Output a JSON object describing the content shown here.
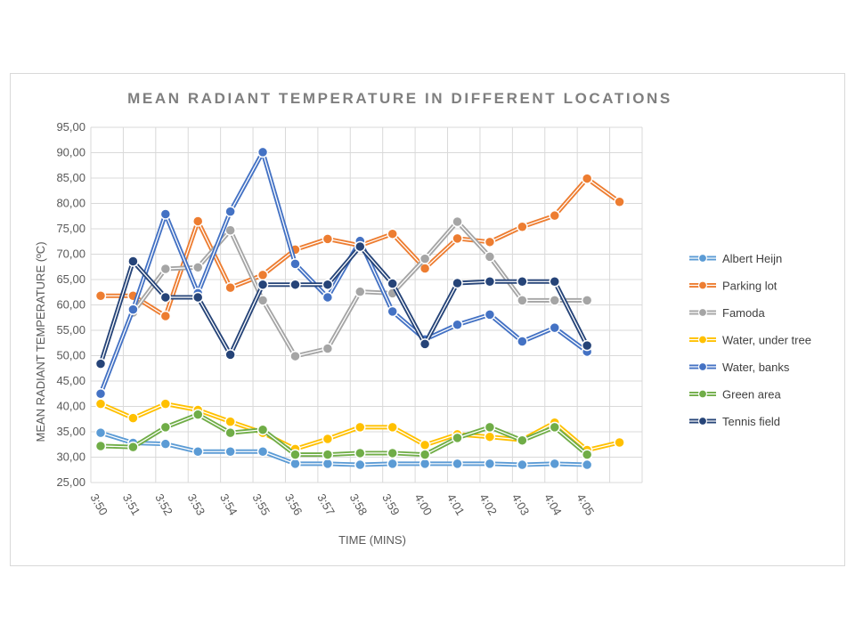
{
  "chart_data": {
    "type": "line",
    "title": "MEAN RADIANT TEMPERATURE IN DIFFERENT LOCATIONS",
    "xlabel": "TIME (MINS)",
    "ylabel": "MEAN RADIANT TEMPERATURE (ºC)",
    "ylim": [
      25,
      95
    ],
    "ytick_step": 5,
    "ytick_labels": [
      "25,00",
      "30,00",
      "35,00",
      "40,00",
      "45,00",
      "50,00",
      "55,00",
      "60,00",
      "65,00",
      "70,00",
      "75,00",
      "80,00",
      "85,00",
      "90,00",
      "95,00"
    ],
    "categories": [
      "3:50",
      "3:51",
      "3:52",
      "3:53",
      "3:54",
      "3:55",
      "3:56",
      "3:57",
      "3:58",
      "3:59",
      "4:00",
      "4:01",
      "4:02",
      "4:03",
      "4:04",
      "4:05",
      ""
    ],
    "grid": true,
    "legend_position": "right",
    "series": [
      {
        "name": "Albert Heijn",
        "color": "#5b9bd5",
        "values": [
          34.8,
          32.8,
          32.6,
          31.1,
          31.1,
          31.1,
          28.7,
          28.7,
          28.5,
          28.7,
          28.7,
          28.7,
          28.7,
          28.5,
          28.7,
          28.5,
          null
        ]
      },
      {
        "name": "Parking lot",
        "color": "#ed7d31",
        "values": [
          61.8,
          61.8,
          57.8,
          76.5,
          63.4,
          65.9,
          70.9,
          73.0,
          71.7,
          74.0,
          67.2,
          73.1,
          72.4,
          75.4,
          77.6,
          84.9,
          80.3
        ]
      },
      {
        "name": "Famoda",
        "color": "#a5a5a5",
        "values": [
          null,
          58.5,
          67.1,
          67.4,
          74.7,
          60.9,
          49.9,
          51.4,
          62.6,
          62.3,
          69.1,
          76.4,
          69.5,
          60.9,
          60.9,
          60.9,
          null
        ]
      },
      {
        "name": "Water, under tree",
        "color": "#ffc000",
        "values": [
          40.5,
          37.7,
          40.5,
          39.3,
          37.0,
          34.8,
          31.6,
          33.6,
          35.9,
          35.9,
          32.4,
          34.5,
          34.0,
          33.4,
          36.8,
          31.4,
          32.9
        ]
      },
      {
        "name": "Water, banks",
        "color": "#4472c4",
        "values": [
          42.5,
          59.1,
          77.9,
          62.3,
          78.4,
          90.1,
          68.1,
          61.5,
          72.6,
          58.7,
          53.2,
          56.1,
          58.1,
          52.8,
          55.5,
          50.8,
          null
        ]
      },
      {
        "name": "Green area",
        "color": "#70ad47",
        "values": [
          32.2,
          32.0,
          35.9,
          38.4,
          34.8,
          35.4,
          30.5,
          30.5,
          30.8,
          30.8,
          30.5,
          33.8,
          35.9,
          33.3,
          35.9,
          30.5,
          null
        ]
      },
      {
        "name": "Tennis field",
        "color": "#264478",
        "values": [
          48.4,
          68.6,
          61.5,
          61.5,
          50.2,
          64.0,
          64.0,
          64.0,
          71.5,
          64.2,
          52.3,
          64.3,
          64.6,
          64.6,
          64.6,
          52.0,
          null
        ]
      }
    ]
  }
}
